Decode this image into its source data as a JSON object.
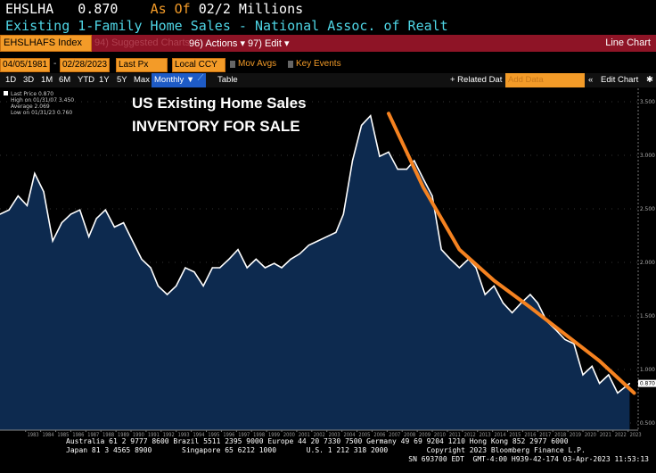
{
  "header": {
    "ticker": "EHSLHA",
    "value": "0.870",
    "as_of": "As Of",
    "date_units": "02/2 Millions",
    "title": "Existing 1-Family Home Sales - National Assoc. of Realt"
  },
  "toolbar": {
    "security": "EHSLHAFS Index",
    "suggested": "94) Suggested Charts",
    "actions": "96) Actions ▾",
    "edit": "97) Edit ▾",
    "chart_type": "Line Chart"
  },
  "controls": {
    "start_date": "04/05/1981",
    "end_date": "02/28/2023",
    "price": "Last Px",
    "currency": "Local CCY",
    "mov_avgs": "Mov Avgs",
    "key_events": "Key Events"
  },
  "periods": [
    "1D",
    "3D",
    "1M",
    "6M",
    "YTD",
    "1Y",
    "5Y",
    "Max"
  ],
  "frequency": "Monthly ▼",
  "table": "Table",
  "related": "+ Related Dat",
  "add_data_placeholder": "Add Data",
  "edit_chart": "Edit Chart",
  "legend": [
    "Last Price 0.870",
    "High on 01/31/07 3.450",
    "Average 2.069",
    "Low on 01/31/23 0.760"
  ],
  "colors": {
    "line": "#ffffff",
    "fill": "#0d2a4f",
    "trend": "#f58220",
    "toolbar": "#8e1426",
    "accent": "#f39b28"
  },
  "chart_data": {
    "type": "line",
    "title": "US Existing Home Sales",
    "subtitle": "INVENTORY FOR SALE",
    "ylim": [
      0.5,
      3.5
    ],
    "yticks": [
      "3.500",
      "3.000",
      "2.500",
      "2.000",
      "1.500",
      "1.000",
      "0.500"
    ],
    "last_value_label": "0.870",
    "xticks": [
      "1983",
      "1984",
      "1985",
      "1986",
      "1987",
      "1988",
      "1989",
      "1990",
      "1991",
      "1992",
      "1993",
      "1994",
      "1995",
      "1996",
      "1997",
      "1998",
      "1999",
      "2000",
      "2001",
      "2002",
      "2003",
      "2004",
      "2005",
      "2006",
      "2007",
      "2008",
      "2009",
      "2010",
      "2011",
      "2012",
      "2013",
      "2014",
      "2015",
      "2016",
      "2017",
      "2018",
      "2019",
      "2020",
      "2021",
      "2022",
      "2023"
    ],
    "series": [
      {
        "x": [
          1981.3,
          1981.9,
          1982.5,
          1983.1,
          1983.6,
          1984.2,
          1984.8,
          1985.4,
          1986.0,
          1986.6,
          1987.2,
          1987.7,
          1988.3,
          1988.9,
          1989.5,
          1990.1,
          1990.7,
          1991.3,
          1991.8,
          1992.4,
          1993.0,
          1993.6,
          1994.2,
          1994.8,
          1995.4,
          1995.9,
          1996.5,
          1997.1,
          1997.7,
          1998.3,
          1998.9,
          1999.5,
          2000.0,
          2000.6,
          2001.2,
          2001.8,
          2002.4,
          2003.0,
          2003.6,
          2004.1,
          2004.7,
          2005.3,
          2005.9,
          2006.5,
          2007.1,
          2007.7,
          2008.3,
          2008.8,
          2009.4,
          2010.0,
          2010.6,
          2011.2,
          2011.8,
          2012.4,
          2012.9,
          2013.5,
          2014.1,
          2014.7,
          2015.3,
          2015.9,
          2016.5,
          2017.0,
          2017.6,
          2018.2,
          2018.8,
          2019.4,
          2020.0,
          2020.6,
          2021.1,
          2021.7,
          2022.3,
          2023.1
        ],
        "values": [
          2.45,
          2.49,
          2.62,
          2.53,
          2.83,
          2.66,
          2.2,
          2.37,
          2.45,
          2.49,
          2.24,
          2.41,
          2.49,
          2.33,
          2.37,
          2.2,
          2.03,
          1.95,
          1.78,
          1.7,
          1.78,
          1.95,
          1.91,
          1.78,
          1.95,
          1.95,
          2.03,
          2.12,
          1.95,
          2.03,
          1.95,
          1.99,
          1.95,
          2.03,
          2.08,
          2.16,
          2.2,
          2.24,
          2.28,
          2.45,
          2.95,
          3.28,
          3.37,
          2.99,
          3.03,
          2.87,
          2.87,
          2.95,
          2.78,
          2.62,
          2.12,
          2.03,
          1.95,
          2.03,
          1.95,
          1.7,
          1.78,
          1.62,
          1.53,
          1.62,
          1.7,
          1.62,
          1.45,
          1.37,
          1.28,
          1.24,
          0.95,
          1.03,
          0.87,
          0.95,
          0.78,
          0.87
        ]
      },
      {
        "x": [
          2007.1,
          2008.3,
          2009.4,
          2010.6,
          2011.8,
          2014.1,
          2016.5,
          2018.8,
          2021.1,
          2023.4
        ],
        "values": [
          3.39,
          3.03,
          2.7,
          2.41,
          2.12,
          1.83,
          1.58,
          1.33,
          1.08,
          0.78
        ]
      }
    ]
  },
  "footer": {
    "line1": "Australia 61 2 9777 8600 Brazil 5511 2395 9000 Europe 44 20 7330 7500 Germany 49 69 9204 1210 Hong Kong 852 2977 6000",
    "line2": "Japan 81 3 4565 8900       Singapore 65 6212 1000       U.S. 1 212 318 2000         Copyright 2023 Bloomberg Finance L.P.",
    "line3": "SN 693700 EDT  GMT-4:00 H939-42-174 03-Apr-2023 11:53:13"
  }
}
